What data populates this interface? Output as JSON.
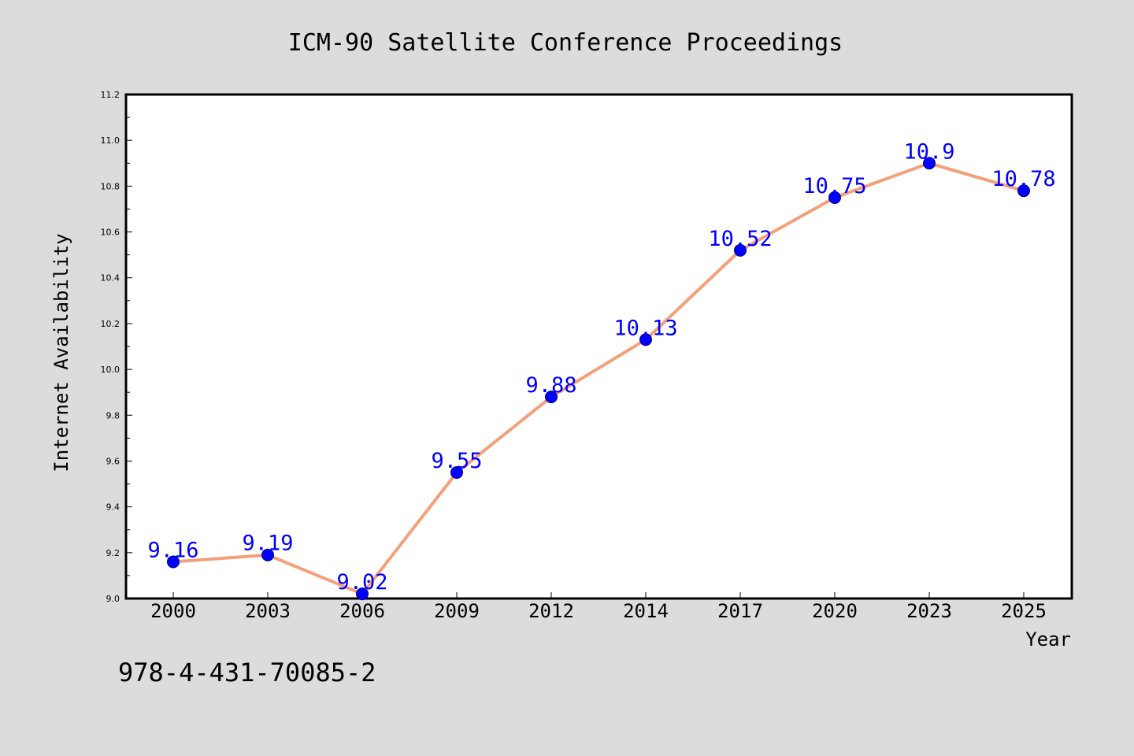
{
  "chart_data": {
    "type": "line",
    "title": "ICM-90 Satellite Conference Proceedings",
    "xlabel": "Year",
    "ylabel": "Internet Availability",
    "categories": [
      "2000",
      "2003",
      "2006",
      "2009",
      "2012",
      "2014",
      "2017",
      "2020",
      "2023",
      "2025"
    ],
    "series": [
      {
        "values": [
          9.16,
          9.19,
          9.02,
          9.55,
          9.88,
          10.13,
          10.52,
          10.75,
          10.9,
          10.78
        ]
      }
    ],
    "ylim": [
      9.0,
      11.2
    ],
    "yticks": [
      "9.0",
      "9.2",
      "9.4",
      "9.6",
      "9.8",
      "10.0",
      "10.2",
      "10.4",
      "10.6",
      "10.8",
      "11.0",
      "11.2"
    ],
    "data_labels": [
      "9.16",
      "9.19",
      "9.02",
      "9.55",
      "9.88",
      "10.13",
      "10.52",
      "10.75",
      "10.9",
      "10.78"
    ],
    "grid": false,
    "colors": {
      "line": "#f4a07a",
      "marker": "#0000ff",
      "marker_edge": "#000080",
      "data_label": "#0000ff",
      "background": "#dcdcdc",
      "plot_area": "#ffffff"
    }
  },
  "footer": {
    "code": "978-4-431-70085-2"
  }
}
